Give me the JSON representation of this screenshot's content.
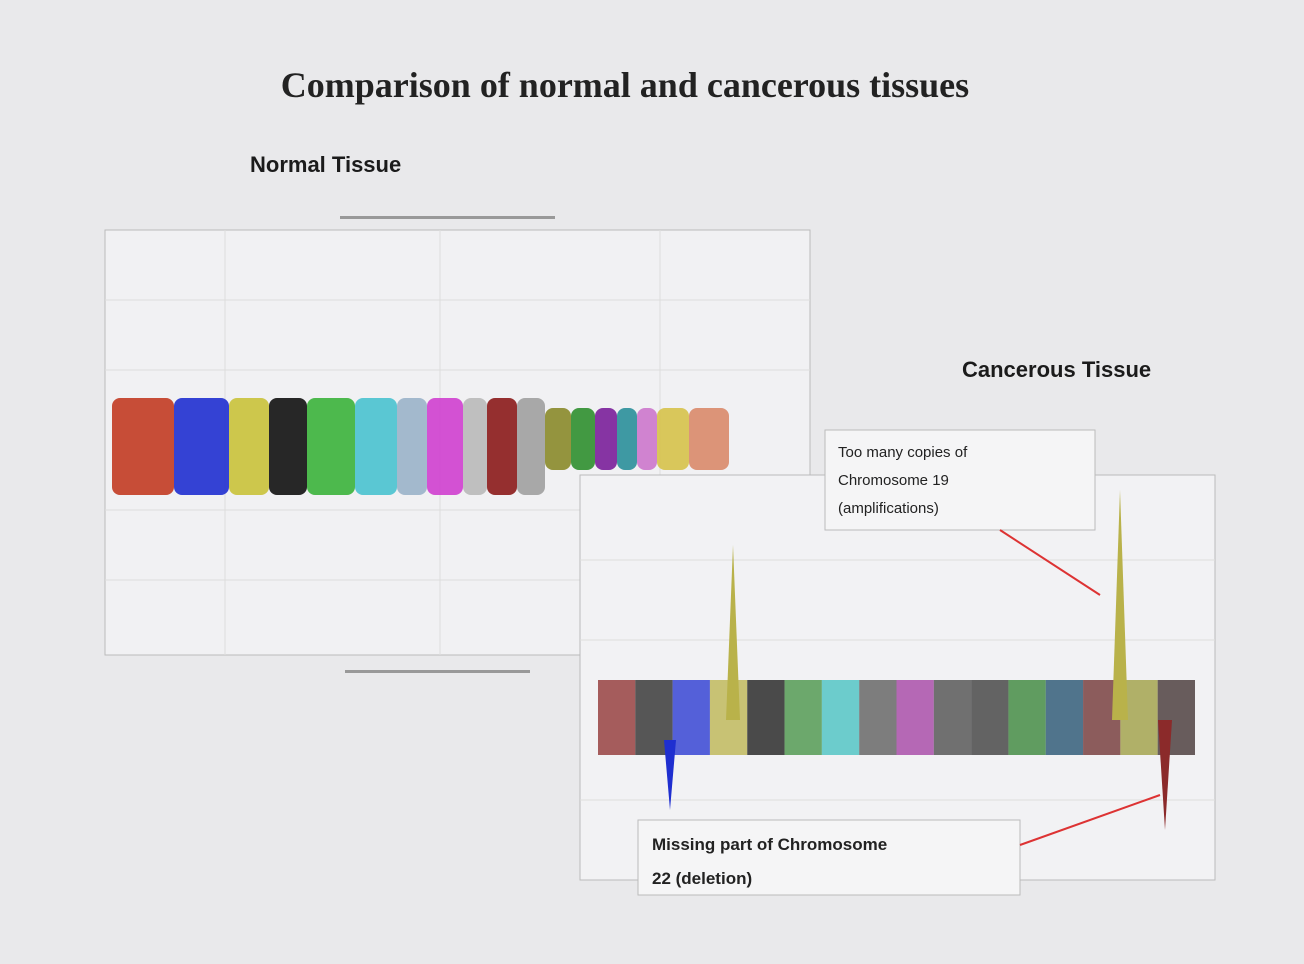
{
  "slide": {
    "title": "Comparison of normal and cancerous tissues",
    "normal_label": "Normal Tissue",
    "cancer_label": "Cancerous Tissue",
    "callouts": [
      {
        "lines": [
          "Too many copies of",
          "Chromosome 19",
          "(amplifications)"
        ]
      },
      {
        "lines": [
          "Missing part of Chromosome",
          "22 (deletion)"
        ]
      }
    ]
  }
}
